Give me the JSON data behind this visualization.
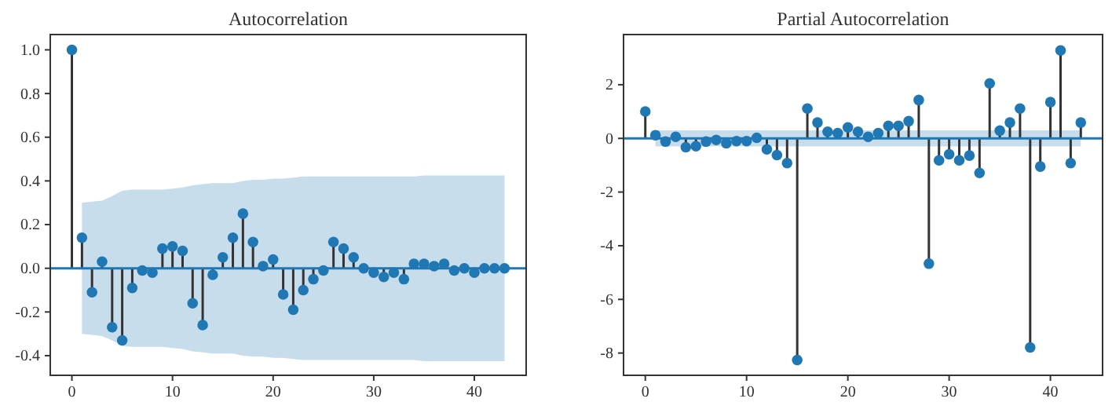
{
  "chart_data": [
    {
      "type": "lollipop",
      "title": "Autocorrelation",
      "x": [
        0,
        1,
        2,
        3,
        4,
        5,
        6,
        7,
        8,
        9,
        10,
        11,
        12,
        13,
        14,
        15,
        16,
        17,
        18,
        19,
        20,
        21,
        22,
        23,
        24,
        25,
        26,
        27,
        28,
        29,
        30,
        31,
        32,
        33,
        34,
        35,
        36,
        37,
        38,
        39,
        40,
        41,
        42,
        43
      ],
      "series": [
        {
          "color": "#1f77b4",
          "values": [
            1.0,
            0.14,
            -0.11,
            0.03,
            -0.27,
            -0.33,
            -0.09,
            -0.01,
            -0.02,
            0.09,
            0.1,
            0.08,
            -0.16,
            -0.26,
            -0.03,
            0.05,
            0.14,
            0.25,
            0.12,
            0.01,
            0.04,
            -0.12,
            -0.19,
            -0.1,
            -0.05,
            -0.01,
            0.12,
            0.09,
            0.05,
            0.0,
            -0.02,
            -0.04,
            -0.02,
            -0.05,
            0.02,
            0.02,
            0.01,
            0.02,
            -0.01,
            0.0,
            -0.02,
            0.0,
            0.0,
            0.0
          ],
          "upper": [
            null,
            0.3,
            0.305,
            0.31,
            0.33,
            0.355,
            0.36,
            0.36,
            0.36,
            0.36,
            0.365,
            0.37,
            0.38,
            0.385,
            0.39,
            0.39,
            0.39,
            0.4,
            0.405,
            0.405,
            0.41,
            0.41,
            0.415,
            0.42,
            0.42,
            0.42,
            0.42,
            0.42,
            0.42,
            0.42,
            0.42,
            0.42,
            0.42,
            0.42,
            0.42,
            0.425,
            0.425,
            0.425,
            0.425,
            0.425,
            0.425,
            0.425,
            0.425,
            0.425
          ],
          "lower": [
            null,
            -0.3,
            -0.305,
            -0.31,
            -0.33,
            -0.355,
            -0.36,
            -0.36,
            -0.36,
            -0.36,
            -0.365,
            -0.37,
            -0.38,
            -0.385,
            -0.39,
            -0.39,
            -0.39,
            -0.4,
            -0.405,
            -0.405,
            -0.41,
            -0.41,
            -0.415,
            -0.42,
            -0.42,
            -0.42,
            -0.42,
            -0.42,
            -0.42,
            -0.42,
            -0.42,
            -0.42,
            -0.42,
            -0.42,
            -0.42,
            -0.425,
            -0.425,
            -0.425,
            -0.425,
            -0.425,
            -0.425,
            -0.425,
            -0.425,
            -0.425
          ]
        }
      ],
      "xlim": [
        -2.15,
        45.15
      ],
      "xticks": [
        0,
        10,
        20,
        30,
        40
      ],
      "ylim": [
        -0.49,
        1.07
      ],
      "yticks": [
        {
          "value": -0.4,
          "label": "-0.4"
        },
        {
          "value": -0.2,
          "label": "-0.2"
        },
        {
          "value": 0,
          "label": "0.0"
        },
        {
          "value": 0.2,
          "label": "0.2"
        },
        {
          "value": 0.4,
          "label": "0.4"
        },
        {
          "value": 0.6,
          "label": "0.6"
        },
        {
          "value": 0.8,
          "label": "0.8"
        },
        {
          "value": 1,
          "label": "1.0"
        }
      ],
      "ref_lines": [
        {
          "axis": "y",
          "value": 0,
          "color": "#1f77b4"
        }
      ],
      "marker": "circle"
    },
    {
      "type": "lollipop",
      "title": "Partial Autocorrelation",
      "x": [
        0,
        1,
        2,
        3,
        4,
        5,
        6,
        7,
        8,
        9,
        10,
        11,
        12,
        13,
        14,
        15,
        16,
        17,
        18,
        19,
        20,
        21,
        22,
        23,
        24,
        25,
        26,
        27,
        28,
        29,
        30,
        31,
        32,
        33,
        34,
        35,
        36,
        37,
        38,
        39,
        40,
        41,
        42,
        43
      ],
      "series": [
        {
          "color": "#1f77b4",
          "values": [
            1.0,
            0.12,
            -0.12,
            0.06,
            -0.33,
            -0.29,
            -0.12,
            -0.06,
            -0.18,
            -0.1,
            -0.1,
            0.02,
            -0.41,
            -0.62,
            -0.92,
            -8.26,
            1.11,
            0.59,
            0.25,
            0.2,
            0.41,
            0.25,
            0.06,
            0.2,
            0.47,
            0.47,
            0.64,
            1.43,
            -4.67,
            -0.82,
            -0.59,
            -0.82,
            -0.64,
            -1.29,
            2.05,
            0.29,
            0.59,
            1.11,
            -7.79,
            -1.05,
            1.35,
            3.28,
            -0.92,
            0.59
          ],
          "upper": [
            null,
            0.3,
            0.3,
            0.3,
            0.3,
            0.3,
            0.3,
            0.3,
            0.3,
            0.3,
            0.3,
            0.3,
            0.3,
            0.3,
            0.3,
            0.3,
            0.3,
            0.3,
            0.3,
            0.3,
            0.3,
            0.3,
            0.3,
            0.3,
            0.3,
            0.3,
            0.3,
            0.3,
            0.3,
            0.3,
            0.3,
            0.3,
            0.3,
            0.3,
            0.3,
            0.3,
            0.3,
            0.3,
            0.3,
            0.3,
            0.3,
            0.3,
            0.3,
            0.3
          ],
          "lower": [
            null,
            -0.3,
            -0.3,
            -0.3,
            -0.3,
            -0.3,
            -0.3,
            -0.3,
            -0.3,
            -0.3,
            -0.3,
            -0.3,
            -0.3,
            -0.3,
            -0.3,
            -0.3,
            -0.3,
            -0.3,
            -0.3,
            -0.3,
            -0.3,
            -0.3,
            -0.3,
            -0.3,
            -0.3,
            -0.3,
            -0.3,
            -0.3,
            -0.3,
            -0.3,
            -0.3,
            -0.3,
            -0.3,
            -0.3,
            -0.3,
            -0.3,
            -0.3,
            -0.3,
            -0.3,
            -0.3,
            -0.3,
            -0.3,
            -0.3,
            -0.3
          ]
        }
      ],
      "xlim": [
        -2.15,
        45.15
      ],
      "xticks": [
        0,
        10,
        20,
        30,
        40
      ],
      "ylim": [
        -8.83,
        3.87
      ],
      "yticks": [
        -8,
        -6,
        -4,
        -2,
        0,
        2
      ],
      "ref_lines": [
        {
          "axis": "y",
          "value": 0,
          "color": "#1f77b4"
        }
      ],
      "marker": "circle"
    }
  ]
}
